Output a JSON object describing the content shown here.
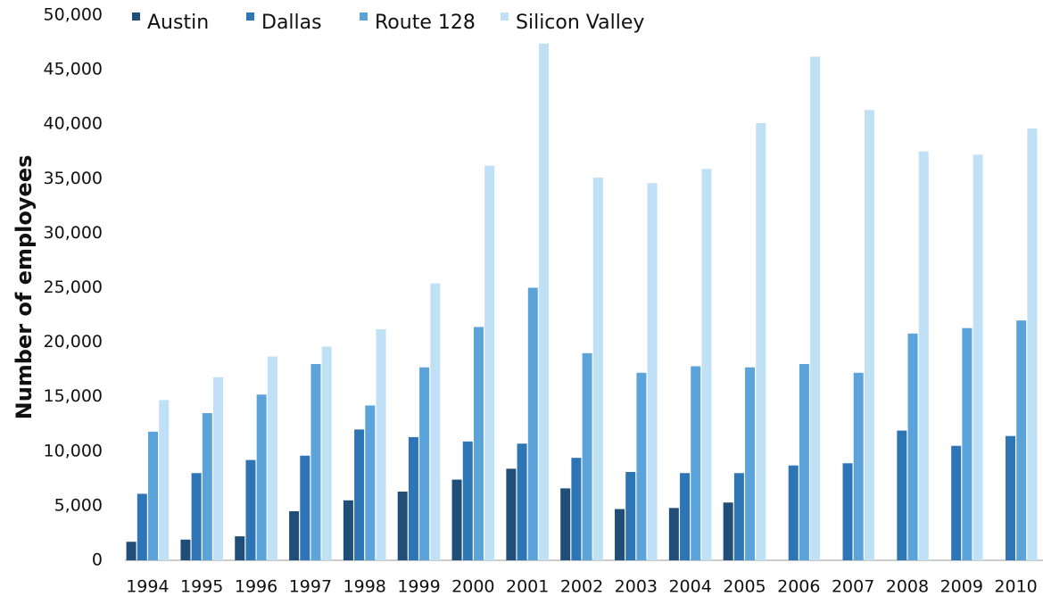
{
  "chart_data": {
    "type": "bar",
    "y_label": "Number of employees",
    "categories": [
      "1994",
      "1995",
      "1996",
      "1997",
      "1998",
      "1999",
      "2000",
      "2001",
      "2002",
      "2003",
      "2004",
      "2005",
      "2006",
      "2007",
      "2008",
      "2009",
      "2010"
    ],
    "series": [
      {
        "name": "Austin",
        "color": "#1f4e79",
        "values": [
          1700,
          1900,
          2200,
          4500,
          5500,
          6300,
          7400,
          8400,
          6600,
          4700,
          4800,
          5300,
          null,
          null,
          null,
          null,
          null
        ]
      },
      {
        "name": "Dallas",
        "color": "#2e75b6",
        "values": [
          6100,
          8000,
          9200,
          9600,
          12000,
          11300,
          10900,
          10700,
          9400,
          8100,
          8000,
          8000,
          8700,
          8900,
          11900,
          10500,
          11400
        ]
      },
      {
        "name": "Route 128",
        "color": "#5ba3d9",
        "values": [
          11800,
          13500,
          15200,
          18000,
          14200,
          17700,
          21400,
          25000,
          19000,
          17200,
          17800,
          17700,
          18000,
          17200,
          20800,
          21300,
          22000
        ]
      },
      {
        "name": "Silicon Valley",
        "color": "#bfe0f5",
        "values": [
          14700,
          16800,
          18700,
          19600,
          21200,
          25400,
          36200,
          47400,
          35100,
          34600,
          35900,
          40100,
          46200,
          41300,
          37500,
          37200,
          39600
        ]
      }
    ],
    "ylim": [
      0,
      50000
    ],
    "yticks": [
      0,
      {
        "value": 5000,
        "label": "5,000"
      },
      {
        "value": 10000,
        "label": "10,000"
      },
      {
        "value": 15000,
        "label": "15,000"
      },
      {
        "value": 20000,
        "label": "20,000"
      },
      {
        "value": 25000,
        "label": "25,000"
      },
      {
        "value": 30000,
        "label": "30,000"
      },
      {
        "value": 35000,
        "label": "35,000"
      },
      {
        "value": 40000,
        "label": "40,000"
      },
      {
        "value": 45000,
        "label": "45,000"
      },
      {
        "value": 50000,
        "label": "50,000"
      }
    ],
    "grid": false,
    "legend": "top"
  }
}
